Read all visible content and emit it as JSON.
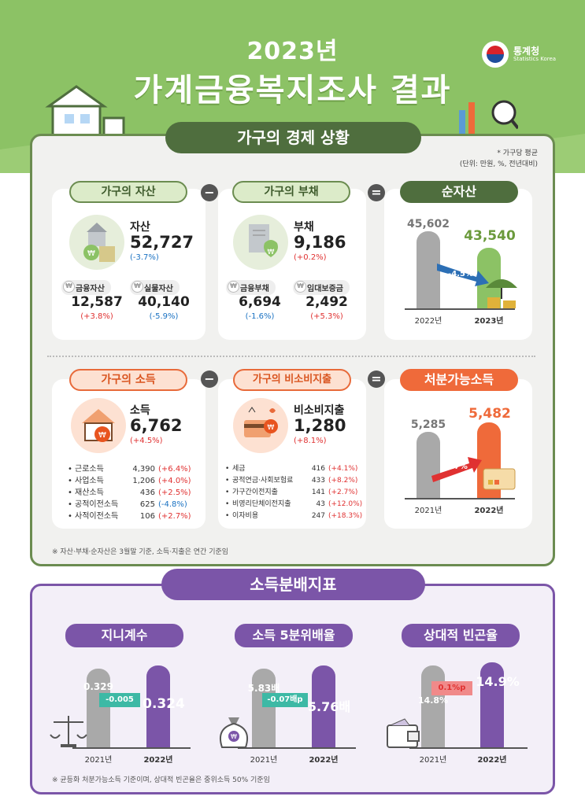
{
  "header": {
    "year": "2023년",
    "title": "가계금융복지조사 결과",
    "logo_name": "통계청",
    "logo_sub": "Statistics Korea"
  },
  "economy": {
    "section_title": "가구의 경제 상황",
    "unit_note_1": "* 가구당 평균",
    "unit_note_2": "(단위: 만원, %, 전년대비)",
    "assets": {
      "tag": "가구의 자산",
      "label": "자산",
      "value": "52,727",
      "change": "(-3.7%)",
      "sub": [
        {
          "label": "금융자산",
          "value": "12,587",
          "change": "(+3.8%)"
        },
        {
          "label": "실물자산",
          "value": "40,140",
          "change": "(-5.9%)"
        }
      ]
    },
    "liabilities": {
      "tag": "가구의 부채",
      "label": "부채",
      "value": "9,186",
      "change": "(+0.2%)",
      "sub": [
        {
          "label": "금융부채",
          "value": "6,694",
          "change": "(-1.6%)"
        },
        {
          "label": "임대보증금",
          "value": "2,492",
          "change": "(+5.3%)"
        }
      ]
    },
    "net_assets": {
      "tag": "순자산",
      "prev_value": "45,602",
      "curr_value": "43,540",
      "change": "-4.5%",
      "prev_year": "2022년",
      "curr_year": "2023년"
    },
    "income": {
      "tag": "가구의 소득",
      "label": "소득",
      "value": "6,762",
      "change": "(+4.5%)",
      "items": [
        {
          "name": "근로소득",
          "value": "4,390",
          "change": "(+6.4%)"
        },
        {
          "name": "사업소득",
          "value": "1,206",
          "change": "(+4.0%)"
        },
        {
          "name": "재산소득",
          "value": "436",
          "change": "(+2.5%)"
        },
        {
          "name": "공적이전소득",
          "value": "625",
          "change": "(-4.8%)"
        },
        {
          "name": "사적이전소득",
          "value": "106",
          "change": "(+2.7%)"
        }
      ]
    },
    "nonconsumption": {
      "tag": "가구의 비소비지출",
      "label": "비소비지출",
      "value": "1,280",
      "change": "(+8.1%)",
      "items": [
        {
          "name": "세금",
          "value": "416",
          "change": "(+4.1%)"
        },
        {
          "name": "공적연금·사회보험료",
          "value": "433",
          "change": "(+8.2%)"
        },
        {
          "name": "가구간이전지출",
          "value": "141",
          "change": "(+2.7%)"
        },
        {
          "name": "비영리단체이전지출",
          "value": "43",
          "change": "(+12.0%)"
        },
        {
          "name": "이자비용",
          "value": "247",
          "change": "(+18.3%)"
        }
      ]
    },
    "disposable": {
      "tag": "처분가능소득",
      "prev_value": "5,285",
      "curr_value": "5,482",
      "change": "3.7%",
      "prev_year": "2021년",
      "curr_year": "2022년"
    },
    "footnote": "※ 자산·부채·순자산은 3월말 기준, 소득·지출은 연간 기준임",
    "op_minus": "−",
    "op_equal": "="
  },
  "distribution": {
    "section_title": "소득분배지표",
    "gini": {
      "tag": "지니계수",
      "prev": "0.329",
      "curr": "0.324",
      "change": "-0.005",
      "prev_year": "2021년",
      "curr_year": "2022년"
    },
    "quintile": {
      "tag": "소득 5분위배율",
      "prev": "5.83배",
      "curr": "5.76배",
      "change": "-0.07배p",
      "prev_year": "2021년",
      "curr_year": "2022년"
    },
    "poverty": {
      "tag": "상대적 빈곤율",
      "prev": "14.8%",
      "curr": "14.9%",
      "change": "0.1%p",
      "prev_year": "2021년",
      "curr_year": "2022년"
    },
    "footnote": "※ 균등화 처분가능소득 기준이며, 상대적 빈곤율은 중위소득 50% 기준임"
  },
  "colors": {
    "green": "#4f6e3e",
    "orange": "#ef6a3a",
    "purple": "#7b55a8",
    "red": "#e03131",
    "blue": "#1971c2"
  }
}
